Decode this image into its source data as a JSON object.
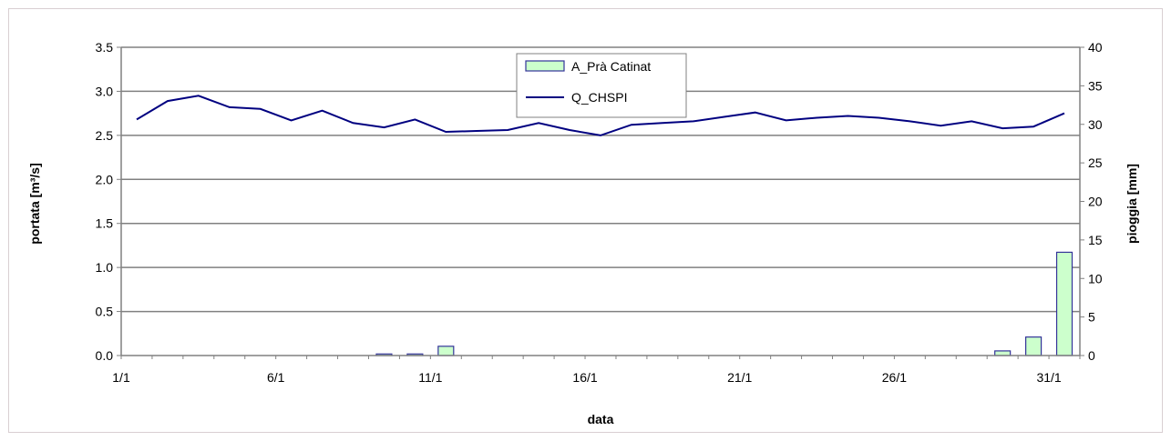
{
  "chart_data": {
    "type": "bar+line",
    "xlabel": "data",
    "ylabel_left": "portata [m³/s]",
    "ylabel_right": "pioggia [mm]",
    "x_ticks": [
      "1/1",
      "6/1",
      "11/1",
      "16/1",
      "21/1",
      "26/1",
      "31/1"
    ],
    "x_tick_days": [
      1,
      6,
      11,
      16,
      21,
      26,
      31
    ],
    "xlim": [
      1,
      32
    ],
    "ylim_left": [
      0,
      3.5
    ],
    "y_ticks_left": [
      "0.0",
      "0.5",
      "1.0",
      "1.5",
      "2.0",
      "2.5",
      "3.0",
      "3.5"
    ],
    "ylim_right": [
      0,
      40
    ],
    "y_ticks_right": [
      "0",
      "5",
      "10",
      "15",
      "20",
      "25",
      "30",
      "35",
      "40"
    ],
    "grid": true,
    "legend_position": "top-center",
    "series": [
      {
        "name": "A_Prà Catinat",
        "type": "bar",
        "axis": "right",
        "color": "#ccffcc",
        "edge_color": "#333399",
        "days": [
          1,
          2,
          3,
          4,
          5,
          6,
          7,
          8,
          9,
          10,
          11,
          12,
          13,
          14,
          15,
          16,
          17,
          18,
          19,
          20,
          21,
          22,
          23,
          24,
          25,
          26,
          27,
          28,
          29,
          30,
          31
        ],
        "values": [
          0,
          0,
          0,
          0,
          0,
          0,
          0,
          0,
          0.2,
          0.2,
          1.2,
          0,
          0,
          0,
          0,
          0,
          0,
          0,
          0,
          0,
          0,
          0,
          0,
          0,
          0,
          0,
          0,
          0,
          0.6,
          2.4,
          13.4
        ]
      },
      {
        "name": "Q_CHSPI",
        "type": "line",
        "axis": "left",
        "color": "#000080",
        "days": [
          1,
          2,
          3,
          4,
          5,
          6,
          7,
          8,
          9,
          10,
          11,
          12,
          13,
          14,
          15,
          16,
          17,
          18,
          19,
          20,
          21,
          22,
          23,
          24,
          25,
          26,
          27,
          28,
          29,
          30,
          31
        ],
        "values": [
          2.68,
          2.89,
          2.95,
          2.82,
          2.8,
          2.67,
          2.78,
          2.64,
          2.59,
          2.68,
          2.54,
          2.55,
          2.56,
          2.64,
          2.56,
          2.5,
          2.62,
          2.64,
          2.66,
          2.71,
          2.76,
          2.67,
          2.7,
          2.72,
          2.7,
          2.66,
          2.61,
          2.66,
          2.58,
          2.6,
          2.75
        ]
      }
    ]
  }
}
